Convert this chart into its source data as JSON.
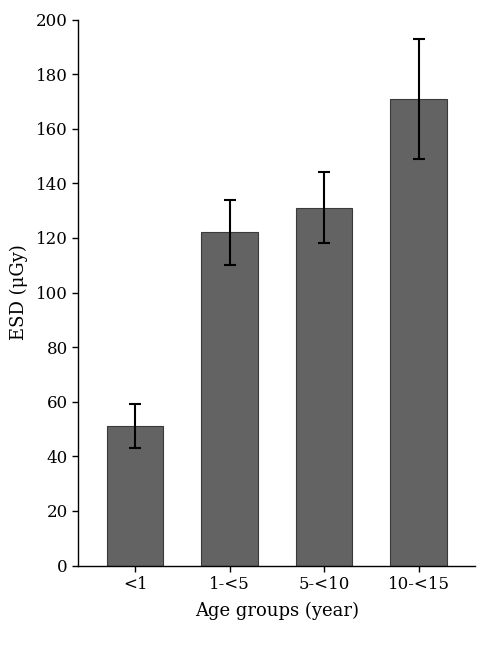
{
  "categories": [
    "<1",
    "1-<5",
    "5-<10",
    "10-<15"
  ],
  "values": [
    51,
    122,
    131,
    171
  ],
  "errors": [
    8,
    12,
    13,
    22
  ],
  "bar_color": "#636363",
  "bar_edgecolor": "#3a3a3a",
  "ylabel": "ESD (μGy)",
  "xlabel": "Age groups (year)",
  "ylim": [
    0,
    200
  ],
  "yticks": [
    0,
    20,
    40,
    60,
    80,
    100,
    120,
    140,
    160,
    180,
    200
  ],
  "ylabel_fontsize": 13,
  "xlabel_fontsize": 13,
  "tick_fontsize": 12,
  "bar_width": 0.6,
  "capsize": 4,
  "error_linewidth": 1.5,
  "background_color": "#ffffff"
}
